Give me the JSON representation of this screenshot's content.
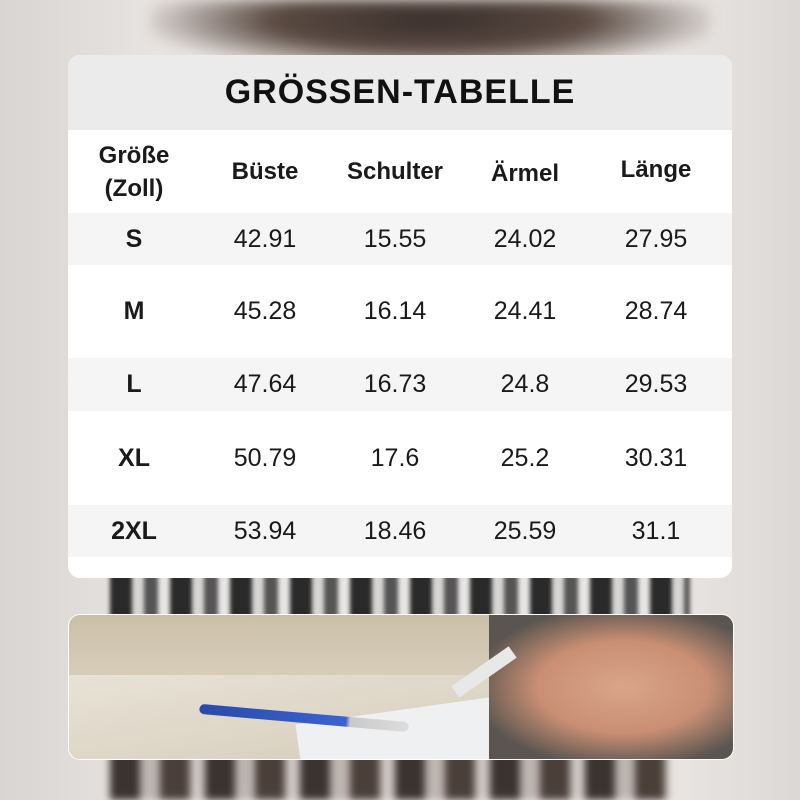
{
  "title": "GRÖSSEN-TABELLE",
  "columns": [
    "Größe (Zoll)",
    "Büste",
    "Schulter",
    "Ärmel",
    "Länge"
  ],
  "column_first_lines": [
    "Größe",
    "(Zoll)"
  ],
  "rows": [
    [
      "S",
      "42.91",
      "15.55",
      "24.02",
      "27.95"
    ],
    [
      "M",
      "45.28",
      "16.14",
      "24.41",
      "28.74"
    ],
    [
      "L",
      "47.64",
      "16.73",
      "24.8",
      "29.53"
    ],
    [
      "XL",
      "50.79",
      "17.6",
      "25.2",
      "30.31"
    ],
    [
      "2XL",
      "53.94",
      "18.46",
      "25.59",
      "31.1"
    ]
  ],
  "colors": {
    "title_band": "#ebebeb",
    "stripe": "#f5f5f5",
    "text": "#1a1a1a"
  }
}
